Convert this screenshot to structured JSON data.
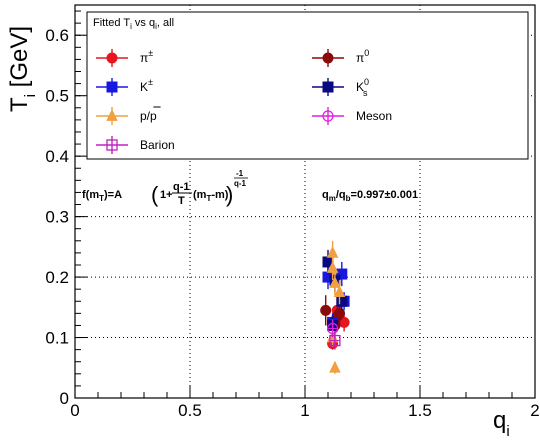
{
  "chart_data": {
    "type": "scatter",
    "xlabel": "q",
    "xlabel_sub": "i",
    "ylabel": "T",
    "ylabel_sub": "i",
    "ylabel_unit": " [GeV]",
    "xlim": [
      0,
      2
    ],
    "ylim": [
      0,
      0.65
    ],
    "x_ticks": [
      "0",
      "0.5",
      "1",
      "1.5",
      "2"
    ],
    "x_tick_values": [
      0,
      0.5,
      1,
      1.5,
      2
    ],
    "y_ticks": [
      "0",
      "0.1",
      "0.2",
      "0.3",
      "0.4",
      "0.5",
      "0.6"
    ],
    "y_tick_values": [
      0,
      0.1,
      0.2,
      0.3,
      0.4,
      0.5,
      0.6
    ],
    "grid": true,
    "legend": {
      "placement": "top",
      "title_main": "Fitted T",
      "title_sub1": "i",
      "title_mid": " vs q",
      "title_sub2": "i",
      "title_end": ", all"
    },
    "annotations": {
      "formula": {
        "f": "f(m",
        "f_sub": "T",
        "eq": ")=A",
        "one_plus": "1+",
        "frac_num": "q-1",
        "frac_den": "T",
        "term": "(m",
        "term_sub": "T",
        "term_end": "-m)",
        "exp_num": "-1",
        "exp_den": "q-1"
      },
      "ratio": {
        "a": "q",
        "a_sub": "m",
        "slash": "/q",
        "b_sub": "b",
        "value": "=0.997",
        "pm": "±",
        "err": "0.001"
      }
    },
    "series": [
      {
        "name": "π±",
        "label_main": "π",
        "label_sup": "±",
        "label_sub": "",
        "color": "#e8141e",
        "marker": "circle",
        "filled": true,
        "points": [
          [
            1.12,
            0.09,
            0.01
          ],
          [
            1.14,
            0.13,
            0.02
          ],
          [
            1.17,
            0.125,
            0.015
          ],
          [
            1.14,
            0.145,
            0.015
          ]
        ]
      },
      {
        "name": "π0",
        "label_main": "π",
        "label_sup": "0",
        "label_sub": "",
        "color": "#8b0a0a",
        "marker": "circle",
        "filled": true,
        "points": [
          [
            1.09,
            0.145,
            0.025
          ],
          [
            1.15,
            0.14,
            0.02
          ],
          [
            1.13,
            0.12,
            0.02
          ],
          [
            1.14,
            0.135,
            0.015
          ]
        ]
      },
      {
        "name": "K±",
        "label_main": "K",
        "label_sup": "±",
        "label_sub": "",
        "color": "#1818e0",
        "marker": "square",
        "filled": true,
        "points": [
          [
            1.1,
            0.2,
            0.02
          ],
          [
            1.16,
            0.205,
            0.02
          ],
          [
            1.12,
            0.125,
            0.015
          ],
          [
            1.17,
            0.16,
            0.015
          ]
        ]
      },
      {
        "name": "K0s",
        "label_main": "K",
        "label_sup": "0",
        "label_sub": "s",
        "color": "#0a0a80",
        "marker": "square",
        "filled": true,
        "points": [
          [
            1.1,
            0.225,
            0.02
          ],
          [
            1.13,
            0.195,
            0.02
          ],
          [
            1.16,
            0.16,
            0.015
          ],
          [
            1.12,
            0.12,
            0.015
          ]
        ]
      },
      {
        "name": "p/p̄",
        "label_main": "p/p",
        "label_sup": "",
        "label_sub": "",
        "color": "#f0a040",
        "marker": "triangle",
        "filled": true,
        "points": [
          [
            1.12,
            0.24,
            0.02
          ],
          [
            1.12,
            0.215,
            0.02
          ],
          [
            1.13,
            0.19,
            0.02
          ],
          [
            1.15,
            0.175,
            0.02
          ],
          [
            1.12,
            0.1,
            0.015
          ],
          [
            1.13,
            0.05,
            0.01
          ]
        ]
      },
      {
        "name": "Meson",
        "label_main": "Meson",
        "label_sup": "",
        "label_sub": "",
        "color": "#e020e0",
        "marker": "circle",
        "filled": false,
        "points": [
          [
            1.12,
            0.115,
            0.015
          ]
        ]
      },
      {
        "name": "Barion",
        "label_main": "Barion",
        "label_sup": "",
        "label_sub": "",
        "color": "#c020c0",
        "marker": "square",
        "filled": false,
        "points": [
          [
            1.13,
            0.095,
            0.015
          ]
        ]
      }
    ]
  }
}
